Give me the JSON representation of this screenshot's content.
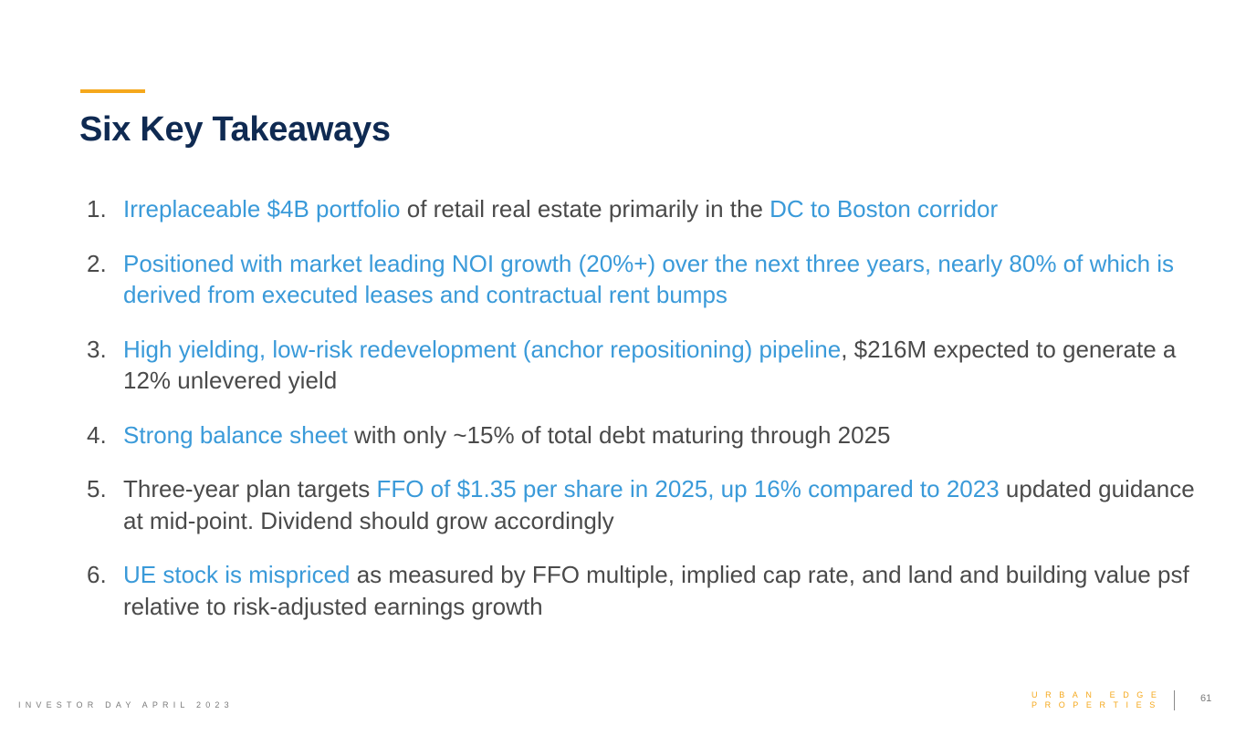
{
  "slide": {
    "title": "Six Key Takeaways",
    "accent_color": "#f5a81c",
    "title_color": "#0f2a52",
    "highlight_color": "#3a9ad9",
    "text_color": "#4a4a4a"
  },
  "takeaways": [
    {
      "number": "1.",
      "segments": [
        {
          "text": "Irreplaceable $4B portfolio",
          "highlight": true
        },
        {
          "text": " of retail real estate primarily in the ",
          "highlight": false
        },
        {
          "text": "DC to Boston corridor",
          "highlight": true
        }
      ]
    },
    {
      "number": "2.",
      "segments": [
        {
          "text": "Positioned with market leading NOI growth (20%+) over the next three years, nearly 80% of which is derived from executed leases and contractual rent bumps",
          "highlight": true
        }
      ]
    },
    {
      "number": "3.",
      "segments": [
        {
          "text": "High yielding, low-risk redevelopment (anchor repositioning) pipeline",
          "highlight": true
        },
        {
          "text": ", $216M expected to generate a 12% unlevered yield",
          "highlight": false
        }
      ]
    },
    {
      "number": "4.",
      "segments": [
        {
          "text": "Strong balance sheet",
          "highlight": true
        },
        {
          "text": " with only ~15% of total debt maturing through 2025",
          "highlight": false
        }
      ]
    },
    {
      "number": "5.",
      "segments": [
        {
          "text": "Three-year plan targets ",
          "highlight": false
        },
        {
          "text": "FFO of $1.35 per share in 2025, up 16% compared to 2023",
          "highlight": true
        },
        {
          "text": " updated guidance at mid-point. Dividend should grow accordingly",
          "highlight": false
        }
      ]
    },
    {
      "number": "6.",
      "segments": [
        {
          "text": "UE stock is mispriced",
          "highlight": true
        },
        {
          "text": " as measured by FFO multiple, implied cap rate, and land and building value psf relative to risk-adjusted earnings growth",
          "highlight": false
        }
      ]
    }
  ],
  "footer": {
    "event": "INVESTOR DAY APRIL 2023",
    "logo_line1": "URBAN EDGE",
    "logo_line2": "PROPERTIES",
    "page_number": "61"
  }
}
